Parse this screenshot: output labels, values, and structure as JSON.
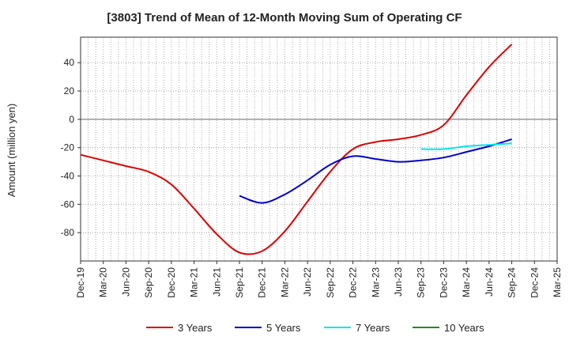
{
  "chart_data": {
    "type": "line",
    "title": "[3803]  Trend of Mean of 12-Month Moving Sum of Operating CF",
    "xlabel": "",
    "ylabel": "Amount (million yen)",
    "ylim": [
      -100,
      58
    ],
    "yticks": [
      40,
      20,
      0,
      -20,
      -40,
      -60,
      -80
    ],
    "categories": [
      "Dec-19",
      "Mar-20",
      "Jun-20",
      "Sep-20",
      "Dec-20",
      "Mar-21",
      "Jun-21",
      "Sep-21",
      "Dec-21",
      "Mar-22",
      "Jun-22",
      "Sep-22",
      "Dec-22",
      "Mar-23",
      "Jun-23",
      "Sep-23",
      "Dec-23",
      "Mar-24",
      "Jun-24",
      "Sep-24",
      "Dec-24",
      "Mar-25"
    ],
    "grid": true,
    "series": [
      {
        "name": "3 Years",
        "color": "#dd0000",
        "points": [
          [
            "Dec-19",
            -25
          ],
          [
            "Mar-20",
            -29
          ],
          [
            "Jun-20",
            -33
          ],
          [
            "Sep-20",
            -37
          ],
          [
            "Dec-20",
            -46
          ],
          [
            "Mar-21",
            -63
          ],
          [
            "Jun-21",
            -81
          ],
          [
            "Sep-21",
            -94
          ],
          [
            "Dec-21",
            -93
          ],
          [
            "Mar-22",
            -79
          ],
          [
            "Jun-22",
            -58
          ],
          [
            "Sep-22",
            -37
          ],
          [
            "Dec-22",
            -21
          ],
          [
            "Mar-23",
            -16
          ],
          [
            "Jun-23",
            -14
          ],
          [
            "Sep-23",
            -11
          ],
          [
            "Dec-23",
            -4
          ],
          [
            "Mar-24",
            17
          ],
          [
            "Jun-24",
            37
          ],
          [
            "Sep-24",
            53
          ]
        ]
      },
      {
        "name": "5 Years",
        "color": "#0000cc",
        "points": [
          [
            "Sep-21",
            -54
          ],
          [
            "Dec-21",
            -59
          ],
          [
            "Mar-22",
            -53
          ],
          [
            "Jun-22",
            -43
          ],
          [
            "Sep-22",
            -32
          ],
          [
            "Dec-22",
            -26
          ],
          [
            "Mar-23",
            -28
          ],
          [
            "Jun-23",
            -30
          ],
          [
            "Sep-23",
            -29
          ],
          [
            "Dec-23",
            -27
          ],
          [
            "Mar-24",
            -23
          ],
          [
            "Jun-24",
            -19
          ],
          [
            "Sep-24",
            -14
          ]
        ]
      },
      {
        "name": "7 Years",
        "color": "#00e5ee",
        "points": [
          [
            "Sep-23",
            -21
          ],
          [
            "Dec-23",
            -21
          ],
          [
            "Mar-24",
            -19
          ],
          [
            "Jun-24",
            -18
          ],
          [
            "Sep-24",
            -17
          ]
        ]
      },
      {
        "name": "10 Years",
        "color": "#228b22",
        "points": []
      }
    ],
    "legend_position": "bottom"
  }
}
